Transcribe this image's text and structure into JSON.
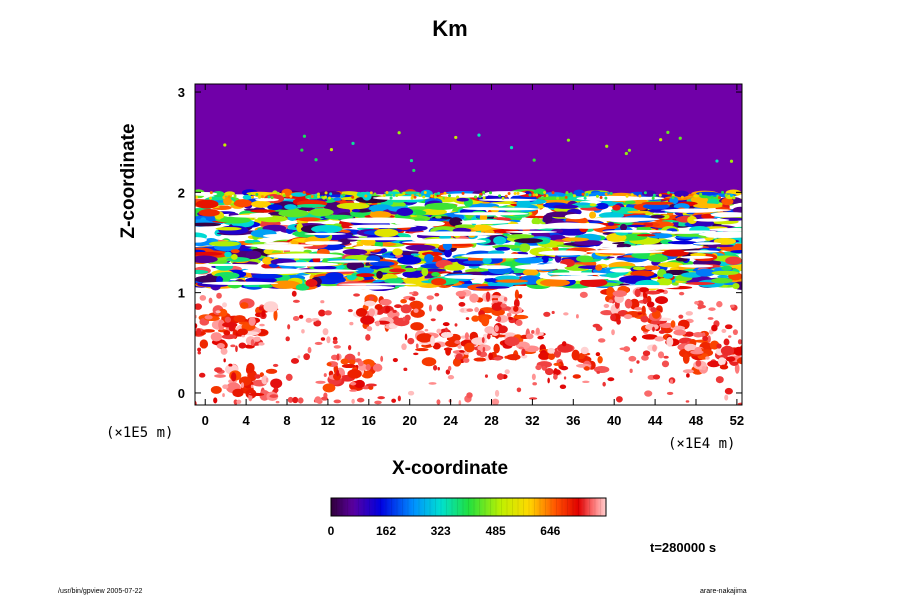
{
  "chart_data": {
    "type": "heatmap",
    "title": "Km",
    "xlabel": "X-coordinate",
    "ylabel": "Z-coordinate",
    "x_scale_note": "(×1E4 m)",
    "y_scale_note": "(×1E5 m)",
    "x_ticks": [
      0,
      4,
      8,
      12,
      16,
      20,
      24,
      28,
      32,
      36,
      40,
      44,
      48,
      52
    ],
    "y_ticks": [
      0,
      1,
      2,
      3
    ],
    "xlim": [
      -1,
      52.5
    ],
    "ylim": [
      -0.12,
      3.08
    ],
    "colorbar": {
      "ticks": [
        "0",
        "162",
        "323",
        "485",
        "646"
      ],
      "range": [
        0,
        810
      ]
    },
    "regions": [
      {
        "z_range": [
          2.0,
          3.08
        ],
        "value": 0,
        "description": "uniform background"
      },
      {
        "z_range": [
          1.05,
          2.0
        ],
        "value_range": [
          0,
          810
        ],
        "description": "turbulent layer"
      },
      {
        "z_range": [
          -0.12,
          1.0
        ],
        "value_range": [
          600,
          810
        ],
        "description": "scattered patches"
      }
    ]
  },
  "annotations": {
    "time": "t=280000 s",
    "footer_left": "/usr/bin/gpview 2005-07-22",
    "footer_right": "arare-nakajima"
  },
  "colors": {
    "background_purple": "#7000a8",
    "frame": "#000000"
  }
}
